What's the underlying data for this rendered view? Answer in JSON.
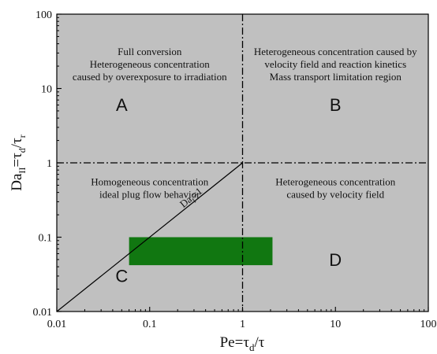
{
  "chart_data": {
    "type": "regime-map",
    "xlabel": {
      "main": "Pe=τ",
      "sub": "d",
      "tail": "/τ"
    },
    "ylabel": {
      "main": "Da",
      "sub": "II",
      "mid": "=τ",
      "sub2": "d",
      "tail": "/τ",
      "sub3": "r"
    },
    "x_scale": "log",
    "y_scale": "log",
    "xlim": [
      0.01,
      100
    ],
    "ylim": [
      0.01,
      100
    ],
    "x_ticks": [
      0.01,
      0.1,
      1,
      10,
      100
    ],
    "y_ticks": [
      0.01,
      0.1,
      1,
      10,
      100
    ],
    "x_tick_labels": [
      "0.01",
      "0.1",
      "1",
      "10",
      "100"
    ],
    "y_tick_labels": [
      "0.01",
      "0.1",
      "1",
      "10",
      "100"
    ],
    "background_color": "#c0c0c0",
    "boundaries": [
      {
        "orientation": "vertical",
        "value": 1,
        "style": "dash-dot"
      },
      {
        "orientation": "horizontal",
        "value": 1,
        "style": "dash-dot"
      }
    ],
    "diagonal": {
      "from": [
        0.01,
        0.01
      ],
      "to": [
        1,
        1
      ],
      "label_main": "Da",
      "label_sub": "I",
      "label_tail": "=1",
      "label_at": [
        0.33,
        0.33
      ]
    },
    "highlight": {
      "x": [
        0.06,
        2.1
      ],
      "y": [
        0.042,
        0.1
      ],
      "color": "#117711"
    },
    "regions": [
      {
        "letter": "A",
        "letter_at": [
          0.05,
          5
        ],
        "text_at": [
          0.1,
          28
        ],
        "lines": [
          "Full conversion",
          "Heterogeneous concentration",
          "caused by overexposure to irradiation"
        ]
      },
      {
        "letter": "B",
        "letter_at": [
          10,
          5
        ],
        "text_at": [
          10,
          28
        ],
        "lines": [
          "Heterogeneous concentration caused by",
          "velocity field and reaction kinetics",
          "Mass transport limitation region"
        ]
      },
      {
        "letter": "C",
        "letter_at": [
          0.05,
          0.025
        ],
        "text_at": [
          0.1,
          0.5
        ],
        "lines": [
          "Homogeneous concentration",
          "ideal plug flow behavior"
        ]
      },
      {
        "letter": "D",
        "letter_at": [
          10,
          0.041
        ],
        "text_at": [
          10,
          0.5
        ],
        "lines": [
          "Heterogeneous concentration",
          "caused by velocity field"
        ]
      }
    ]
  }
}
